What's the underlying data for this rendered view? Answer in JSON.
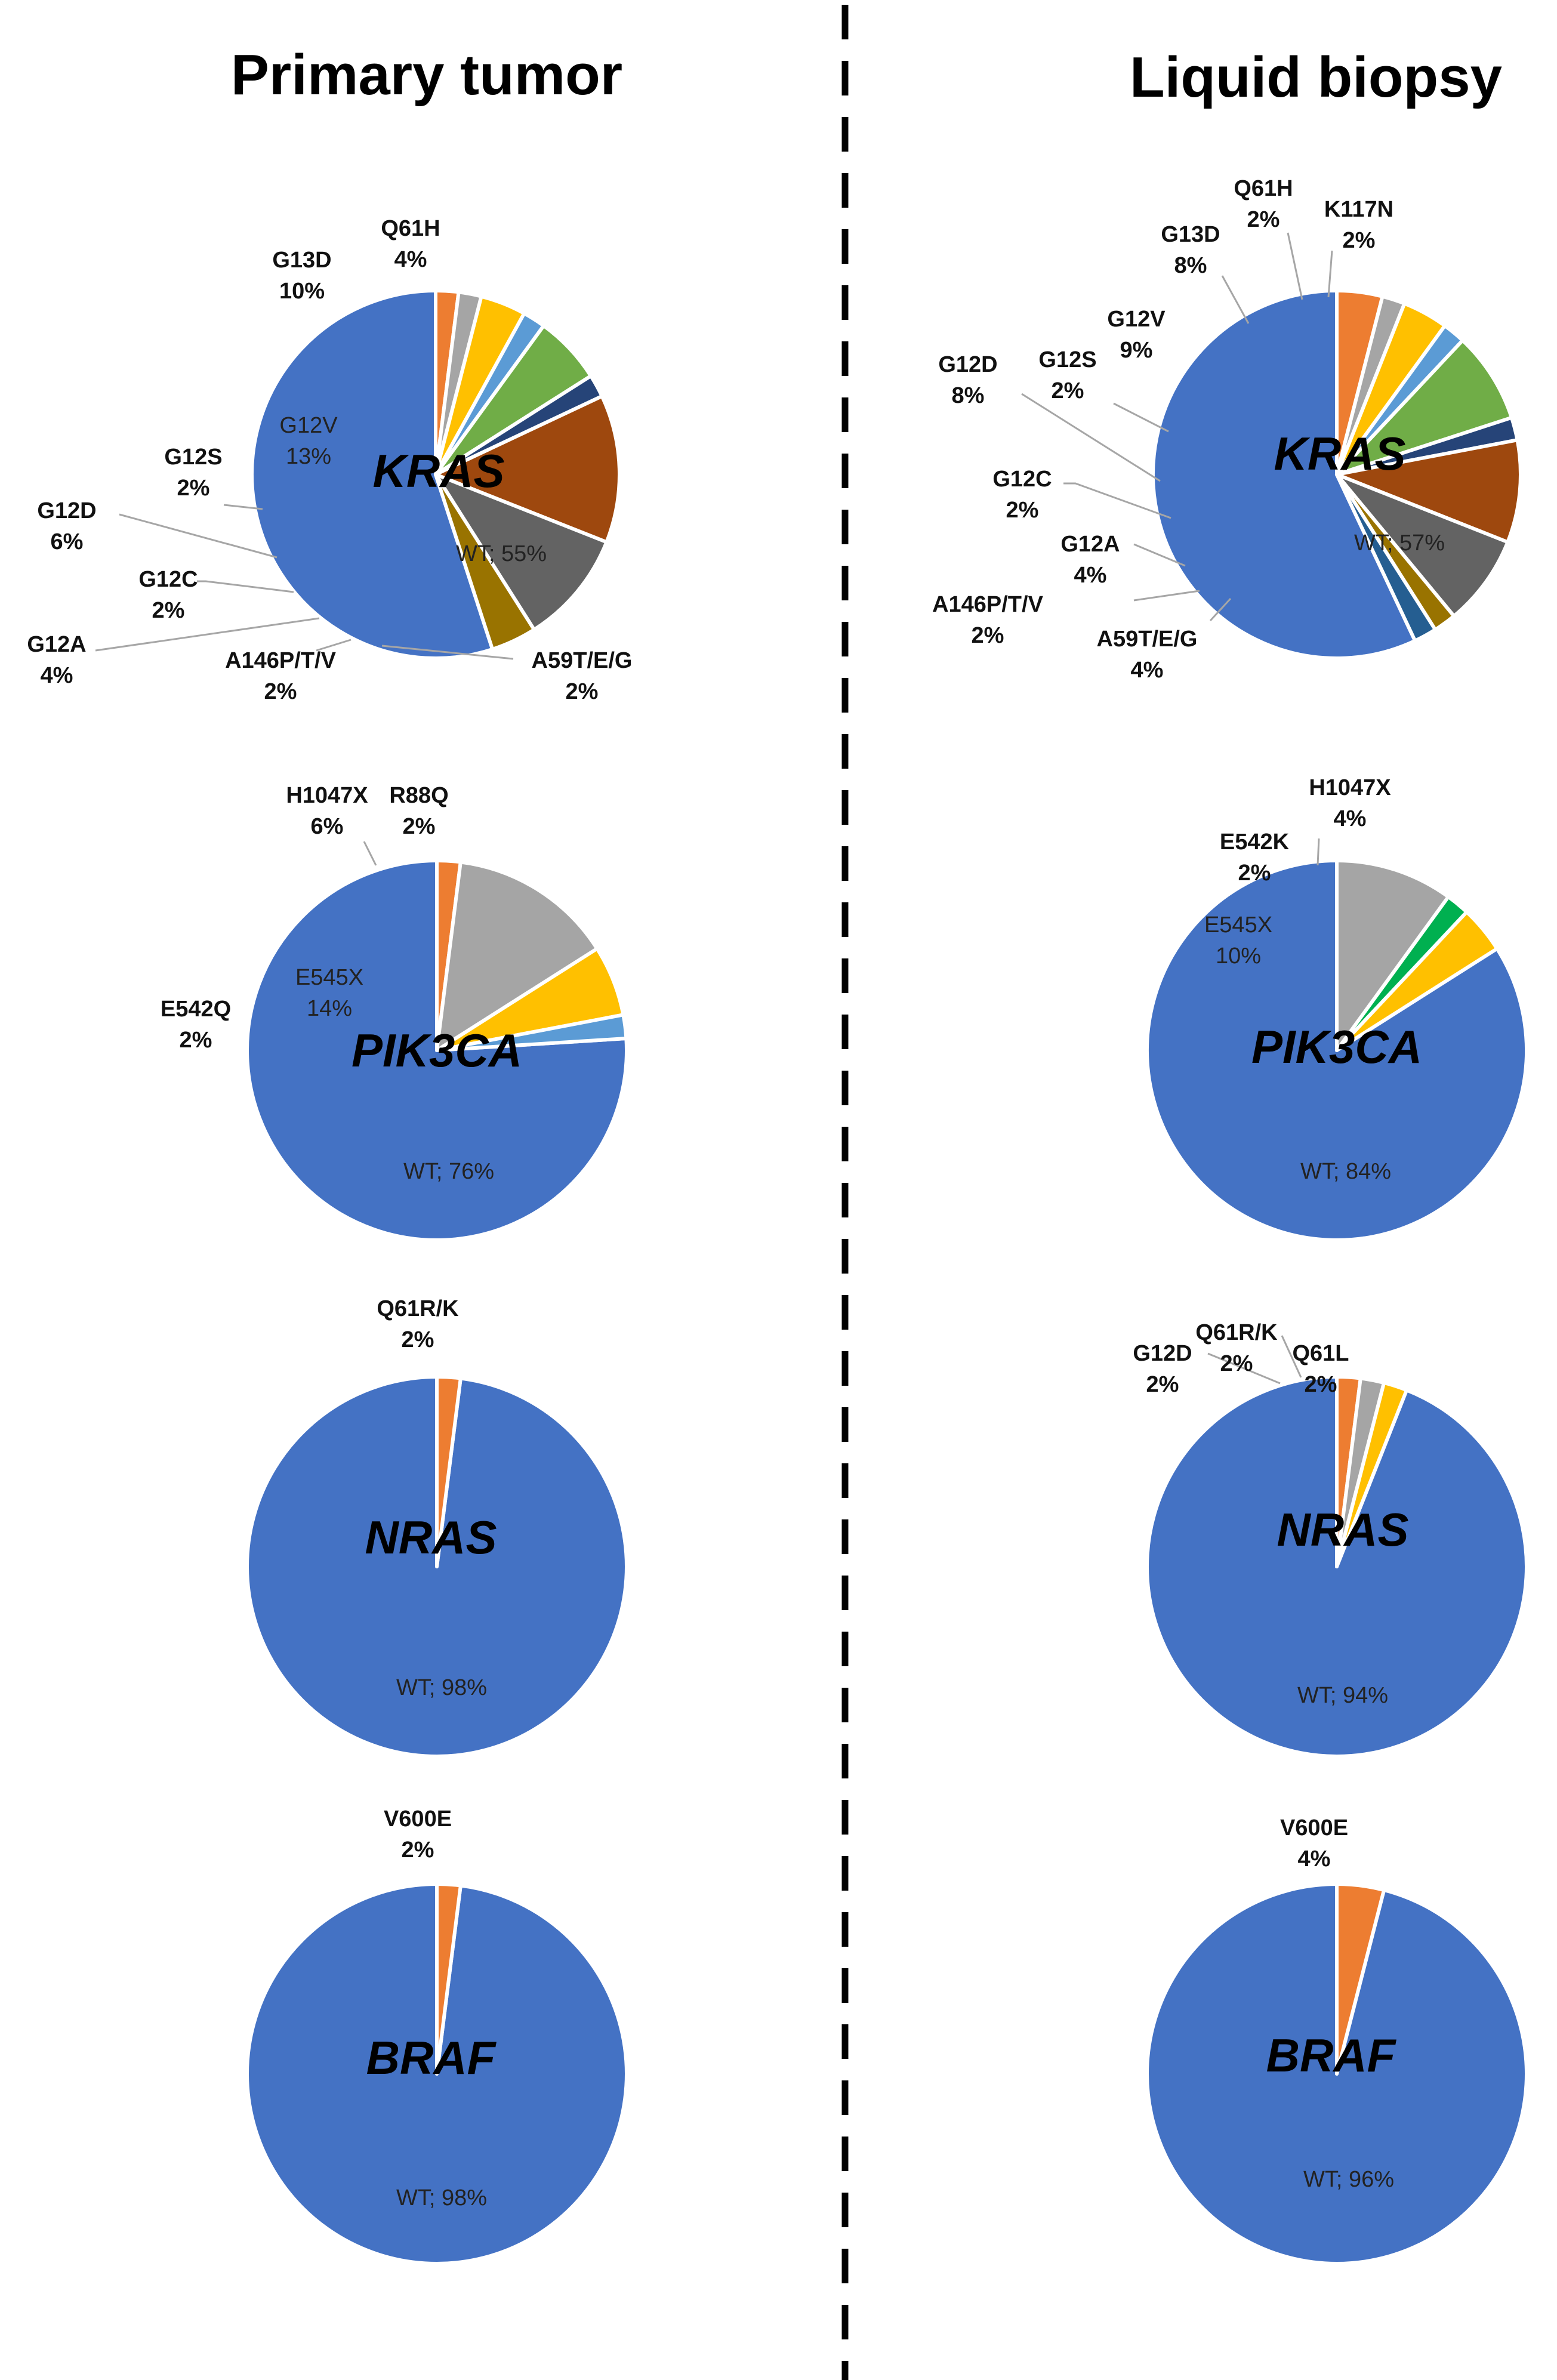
{
  "headings": {
    "left": "Primary tumor",
    "right": "Liquid biopsy"
  },
  "chart_data": [
    {
      "type": "pie",
      "gene": "KRAS",
      "panel": "Primary tumor",
      "slices": [
        {
          "name": "WT",
          "label": "WT; 55%",
          "value": 55,
          "color": "#4472c4"
        },
        {
          "name": "A59T/E/G",
          "label": "A59T/E/G",
          "pct": "2%",
          "value": 2,
          "color": "#ed7d31"
        },
        {
          "name": "A146P/T/V",
          "label": "A146P/T/V",
          "pct": "2%",
          "value": 2,
          "color": "#a5a5a5"
        },
        {
          "name": "G12A",
          "label": "G12A",
          "pct": "4%",
          "value": 4,
          "color": "#ffc000"
        },
        {
          "name": "G12C",
          "label": "G12C",
          "pct": "2%",
          "value": 2,
          "color": "#5b9bd5"
        },
        {
          "name": "G12D",
          "label": "G12D",
          "pct": "6%",
          "value": 6,
          "color": "#70ad47"
        },
        {
          "name": "G12S",
          "label": "G12S",
          "pct": "2%",
          "value": 2,
          "color": "#264478"
        },
        {
          "name": "G12V",
          "label": "G12V",
          "pct": "13%",
          "value": 13,
          "color": "#9e480e"
        },
        {
          "name": "G13D",
          "label": "G13D",
          "pct": "10%",
          "value": 10,
          "color": "#636363"
        },
        {
          "name": "Q61H",
          "label": "Q61H",
          "pct": "4%",
          "value": 4,
          "color": "#997300"
        }
      ]
    },
    {
      "type": "pie",
      "gene": "KRAS",
      "panel": "Liquid biopsy",
      "slices": [
        {
          "name": "WT",
          "label": "WT; 57%",
          "value": 57,
          "color": "#4472c4"
        },
        {
          "name": "A59T/E/G",
          "label": "A59T/E/G",
          "pct": "4%",
          "value": 4,
          "color": "#ed7d31"
        },
        {
          "name": "A146P/T/V",
          "label": "A146P/T/V",
          "pct": "2%",
          "value": 2,
          "color": "#a5a5a5"
        },
        {
          "name": "G12A",
          "label": "G12A",
          "pct": "4%",
          "value": 4,
          "color": "#ffc000"
        },
        {
          "name": "G12C",
          "label": "G12C",
          "pct": "2%",
          "value": 2,
          "color": "#5b9bd5"
        },
        {
          "name": "G12D",
          "label": "G12D",
          "pct": "8%",
          "value": 8,
          "color": "#70ad47"
        },
        {
          "name": "G12S",
          "label": "G12S",
          "pct": "2%",
          "value": 2,
          "color": "#264478"
        },
        {
          "name": "G12V",
          "label": "G12V",
          "pct": "9%",
          "value": 9,
          "color": "#9e480e"
        },
        {
          "name": "G13D",
          "label": "G13D",
          "pct": "8%",
          "value": 8,
          "color": "#636363"
        },
        {
          "name": "Q61H",
          "label": "Q61H",
          "pct": "2%",
          "value": 2,
          "color": "#997300"
        },
        {
          "name": "K117N",
          "label": "K117N",
          "pct": "2%",
          "value": 2,
          "color": "#255e91"
        }
      ]
    },
    {
      "type": "pie",
      "gene": "PIK3CA",
      "panel": "Primary tumor",
      "slices": [
        {
          "name": "WT",
          "label": "WT; 76%",
          "value": 76,
          "color": "#4472c4"
        },
        {
          "name": "E542Q",
          "label": "E542Q",
          "pct": "2%",
          "value": 2,
          "color": "#ed7d31"
        },
        {
          "name": "E545X",
          "label": "E545X",
          "pct": "14%",
          "value": 14,
          "color": "#a5a5a5"
        },
        {
          "name": "H1047X",
          "label": "H1047X",
          "pct": "6%",
          "value": 6,
          "color": "#ffc000"
        },
        {
          "name": "R88Q",
          "label": "R88Q",
          "pct": "2%",
          "value": 2,
          "color": "#5b9bd5"
        }
      ]
    },
    {
      "type": "pie",
      "gene": "PIK3CA",
      "panel": "Liquid biopsy",
      "slices": [
        {
          "name": "WT",
          "label": "WT; 84%",
          "value": 84,
          "color": "#4472c4"
        },
        {
          "name": "E545X",
          "label": "E545X",
          "pct": "10%",
          "value": 10,
          "color": "#a5a5a5"
        },
        {
          "name": "E542K",
          "label": "E542K",
          "pct": "2%",
          "value": 2,
          "color": "#00b050"
        },
        {
          "name": "H1047X",
          "label": "H1047X",
          "pct": "4%",
          "value": 4,
          "color": "#ffc000"
        }
      ]
    },
    {
      "type": "pie",
      "gene": "NRAS",
      "panel": "Primary tumor",
      "slices": [
        {
          "name": "WT",
          "label": "WT; 98%",
          "value": 98,
          "color": "#4472c4"
        },
        {
          "name": "Q61R/K",
          "label": "Q61R/K",
          "pct": "2%",
          "value": 2,
          "color": "#ed7d31"
        }
      ]
    },
    {
      "type": "pie",
      "gene": "NRAS",
      "panel": "Liquid biopsy",
      "slices": [
        {
          "name": "WT",
          "label": "WT; 94%",
          "value": 94,
          "color": "#4472c4"
        },
        {
          "name": "G12D",
          "label": "G12D",
          "pct": "2%",
          "value": 2,
          "color": "#ed7d31"
        },
        {
          "name": "Q61R/K",
          "label": "Q61R/K",
          "pct": "2%",
          "value": 2,
          "color": "#a5a5a5"
        },
        {
          "name": "Q61L",
          "label": "Q61L",
          "pct": "2%",
          "value": 2,
          "color": "#ffc000"
        }
      ]
    },
    {
      "type": "pie",
      "gene": "BRAF",
      "panel": "Primary tumor",
      "slices": [
        {
          "name": "WT",
          "label": "WT; 98%",
          "value": 98,
          "color": "#4472c4"
        },
        {
          "name": "V600E",
          "label": "V600E",
          "pct": "2%",
          "value": 2,
          "color": "#ed7d31"
        }
      ]
    },
    {
      "type": "pie",
      "gene": "BRAF",
      "panel": "Liquid biopsy",
      "slices": [
        {
          "name": "WT",
          "label": "WT; 96%",
          "value": 96,
          "color": "#4472c4"
        },
        {
          "name": "V600E",
          "label": "V600E",
          "pct": "4%",
          "value": 4,
          "color": "#ed7d31"
        }
      ]
    }
  ]
}
